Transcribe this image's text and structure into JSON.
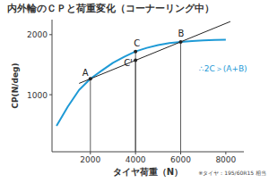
{
  "chart_data": {
    "type": "line",
    "title": "内外輪のＣＰと荷重変化（コーナーリング中）",
    "x_label": "タイヤ荷重（N）",
    "y_label": "CP(N/deg)",
    "note": "※タイヤ：195/60R15 相当",
    "formula": "∴2C＞(A+B)",
    "xlim": [
      300,
      8800
    ],
    "ylim": [
      50,
      2250
    ],
    "xticks": [
      2000,
      4000,
      6000,
      8000
    ],
    "yticks": [
      1000,
      2000
    ],
    "grid": false,
    "series": [
      {
        "type": "line",
        "color": "#1e9ad6",
        "line_style": "solid",
        "x": [
          500,
          1000,
          1500,
          2000,
          2500,
          3000,
          3500,
          4000,
          4500,
          5000,
          5500,
          6000,
          6500,
          7000,
          7500,
          8000
        ],
        "values": [
          480,
          800,
          1080,
          1265,
          1400,
          1530,
          1630,
          1720,
          1780,
          1825,
          1860,
          1880,
          1895,
          1905,
          1910,
          1915
        ]
      },
      {
        "type": "line",
        "color": "#222222",
        "line_style": "solid",
        "x": [
          1500,
          8200
        ],
        "values": [
          1188,
          2218
        ]
      },
      {
        "type": "scatter",
        "color": "#222222",
        "marker": "circle",
        "x": [
          2000,
          4000,
          4000,
          6000
        ],
        "values": [
          1265,
          1720,
          1573,
          1880
        ],
        "labels": [
          "A",
          "C",
          "C'",
          "B"
        ]
      }
    ]
  }
}
